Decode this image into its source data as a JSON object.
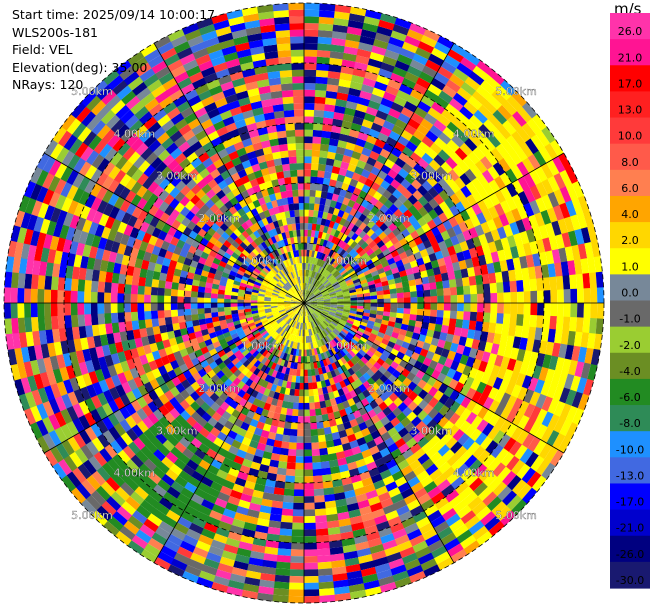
{
  "info": {
    "start_time": "Start time: 2025/09/14 10:00:17",
    "instrument": "WLS200s-181",
    "field": "Field: VEL",
    "elevation": "Elevation(deg): 35.00",
    "nrays": "NRays: 120"
  },
  "chart_data": {
    "type": "heatmap",
    "projection": "polar (PPI)",
    "field": "VEL",
    "n_rays": 120,
    "elevation_deg": 35.0,
    "range_ring_labels": [
      "1.00km",
      "2.00km",
      "3.00km",
      "4.00km",
      "5.00km"
    ],
    "colorbar": {
      "unit": "m/s",
      "ticks": [
        "26.0",
        "21.0",
        "17.0",
        "13.0",
        "10.0",
        "8.0",
        "6.0",
        "4.0",
        "2.0",
        "1.0",
        "0.0",
        "-1.0",
        "-2.0",
        "-4.0",
        "-6.0",
        "-8.0",
        "-10.0",
        "-13.0",
        "-17.0",
        "-21.0",
        "-26.0",
        "-30.0"
      ],
      "colors_top_to_bottom": [
        "#ff33aa",
        "#ff1493",
        "#ff0000",
        "#ff2020",
        "#ff3a3a",
        "#ff5a4a",
        "#ff7f50",
        "#ffa500",
        "#ffd700",
        "#ffff00",
        "#778899",
        "#696969",
        "#9acd32",
        "#6b8e23",
        "#228b22",
        "#2e8b57",
        "#1e90ff",
        "#4169e1",
        "#0000ff",
        "#0000cd",
        "#000080",
        "#191970"
      ]
    }
  }
}
